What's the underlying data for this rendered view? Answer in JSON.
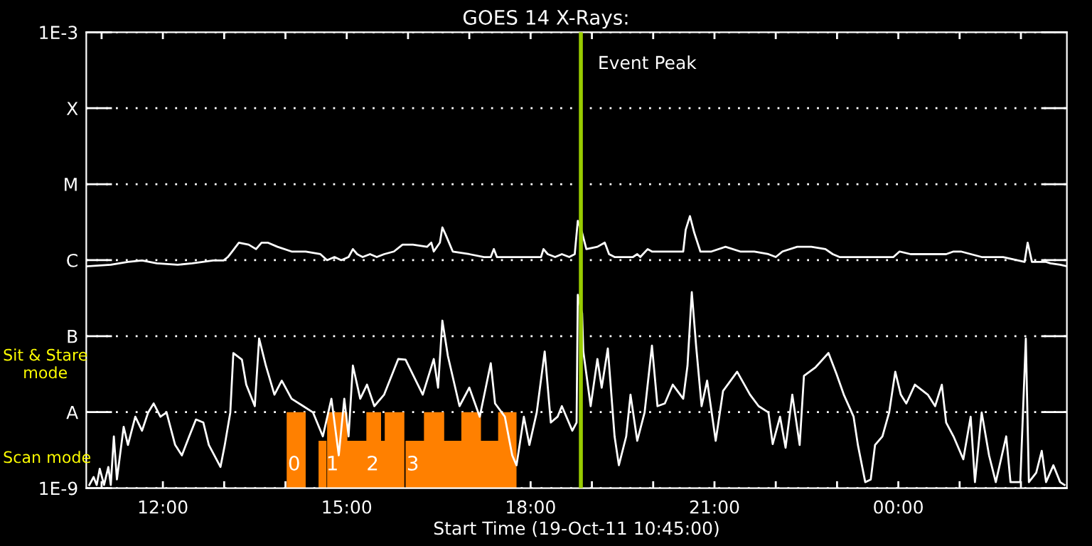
{
  "chart_data": {
    "type": "line",
    "title": "GOES 14 X-Rays:",
    "xlabel": "Start Time (19-Oct-11 10:45:00)",
    "log": "y",
    "grid": "y",
    "line_style": "solid",
    "marker": "none",
    "xlim": [
      10.75,
      26.75
    ],
    "xticks": [
      {
        "value": 11,
        "label": null
      },
      {
        "value": 12,
        "label": "12:00"
      },
      {
        "value": 13,
        "label": null
      },
      {
        "value": 14,
        "label": null
      },
      {
        "value": 15,
        "label": "15:00"
      },
      {
        "value": 16,
        "label": null
      },
      {
        "value": 17,
        "label": null
      },
      {
        "value": 18,
        "label": "18:00"
      },
      {
        "value": 19,
        "label": null
      },
      {
        "value": 20,
        "label": null
      },
      {
        "value": 21,
        "label": "21:00"
      },
      {
        "value": 22,
        "label": null
      },
      {
        "value": 23,
        "label": null
      },
      {
        "value": 24,
        "label": "00:00"
      },
      {
        "value": 25,
        "label": null
      },
      {
        "value": 26,
        "label": null
      }
    ],
    "ylim": [
      1e-09,
      0.001
    ],
    "yticks": [
      {
        "value": 1e-09,
        "label": "1E-9"
      },
      {
        "value": 1e-08,
        "label": "A"
      },
      {
        "value": 1e-07,
        "label": "B"
      },
      {
        "value": 1e-06,
        "label": "C"
      },
      {
        "value": 1e-05,
        "label": "M"
      },
      {
        "value": 0.0001,
        "label": "X"
      },
      {
        "value": 0.001,
        "label": "1E-3"
      }
    ],
    "ref_lines": [
      {
        "axis": "x",
        "value": 18.82,
        "label": "Event Peak",
        "color": "#99cc00",
        "line_style": "solid"
      }
    ],
    "annotations": [
      "Sit & Stare\nmode",
      "Scan mode",
      "0",
      "1",
      "2",
      "3"
    ],
    "series": [
      {
        "type": "area",
        "color": "#ff8000",
        "x": [
          14.02,
          14.33
        ],
        "values": [
          1e-08,
          1e-08
        ]
      },
      {
        "type": "area",
        "color": "#ff8000",
        "x": [
          14.54,
          14.67
        ],
        "values": [
          4.2e-09,
          4.2e-09
        ]
      },
      {
        "type": "area",
        "color": "#ff8000",
        "x": [
          14.68,
          15.01,
          15.01,
          15.32,
          15.32,
          15.56,
          15.56,
          15.62,
          15.62,
          15.94
        ],
        "values": [
          1e-08,
          1e-08,
          4.2e-09,
          4.2e-09,
          1e-08,
          1e-08,
          4.2e-09,
          4.2e-09,
          1e-08,
          1e-08
        ]
      },
      {
        "type": "area",
        "color": "#ff8000",
        "x": [
          15.96,
          16.26,
          16.26,
          16.59,
          16.59,
          16.87,
          16.87,
          17.19,
          17.19,
          17.47,
          17.47,
          17.77
        ],
        "values": [
          4.2e-09,
          4.2e-09,
          1e-08,
          1e-08,
          4.2e-09,
          4.2e-09,
          1e-08,
          1e-08,
          4.2e-09,
          4.2e-09,
          1e-08,
          1e-08
        ]
      },
      {
        "color": "#ffffff",
        "x": [
          10.76,
          11.15,
          11.43,
          11.66,
          11.9,
          12.24,
          12.48,
          12.82,
          12.99,
          13.06,
          13.13,
          13.24,
          13.4,
          13.52,
          13.61,
          13.71,
          13.87,
          14.1,
          14.33,
          14.57,
          14.68,
          14.8,
          14.91,
          15.03,
          15.1,
          15.17,
          15.26,
          15.38,
          15.49,
          15.61,
          15.77,
          15.91,
          16.08,
          16.31,
          16.38,
          16.42,
          16.52,
          16.56,
          16.61,
          16.73,
          17.0,
          17.24,
          17.35,
          17.4,
          17.45,
          17.58,
          17.82,
          17.93,
          18.17,
          18.21,
          18.28,
          18.4,
          18.51,
          18.63,
          18.72,
          18.77,
          18.84,
          18.91,
          19.09,
          19.21,
          19.28,
          19.37,
          19.56,
          19.67,
          19.74,
          19.79,
          19.91,
          19.98,
          20.14,
          20.49,
          20.53,
          20.6,
          20.67,
          20.77,
          20.95,
          21.18,
          21.42,
          21.65,
          21.88,
          22.0,
          22.11,
          22.35,
          22.58,
          22.81,
          22.93,
          23.04,
          23.39,
          23.92,
          24.02,
          24.2,
          24.67,
          24.78,
          24.9,
          25.02,
          25.36,
          25.71,
          26.06,
          26.11,
          26.18,
          26.41,
          26.48,
          26.64,
          26.75
        ],
        "values": [
          8.3e-07,
          8.7e-07,
          9.5e-07,
          9.9e-07,
          9.1e-07,
          8.7e-07,
          9.1e-07,
          9.9e-07,
          9.9e-07,
          1.1e-06,
          1.3e-06,
          1.7e-06,
          1.6e-06,
          1.4e-06,
          1.7e-06,
          1.7e-06,
          1.5e-06,
          1.3e-06,
          1.3e-06,
          1.2e-06,
          1e-06,
          1.1e-06,
          1e-06,
          1.1e-06,
          1.4e-06,
          1.2e-06,
          1.1e-06,
          1.2e-06,
          1.1e-06,
          1.2e-06,
          1.3e-06,
          1.6e-06,
          1.6e-06,
          1.5e-06,
          1.7e-06,
          1.3e-06,
          1.7e-06,
          2.7e-06,
          2.2e-06,
          1.3e-06,
          1.2e-06,
          1.1e-06,
          1.1e-06,
          1.4e-06,
          1.1e-06,
          1.1e-06,
          1.1e-06,
          1.1e-06,
          1.1e-06,
          1.4e-06,
          1.2e-06,
          1.1e-06,
          1.2e-06,
          1.1e-06,
          1.2e-06,
          3.3e-06,
          2.3e-06,
          1.4e-06,
          1.5e-06,
          1.7e-06,
          1.2e-06,
          1.1e-06,
          1.1e-06,
          1.1e-06,
          1.2e-06,
          1.1e-06,
          1.4e-06,
          1.3e-06,
          1.3e-06,
          1.3e-06,
          2.5e-06,
          3.8e-06,
          2.3e-06,
          1.3e-06,
          1.3e-06,
          1.5e-06,
          1.3e-06,
          1.3e-06,
          1.2e-06,
          1.1e-06,
          1.3e-06,
          1.5e-06,
          1.5e-06,
          1.4e-06,
          1.2e-06,
          1.1e-06,
          1.1e-06,
          1.1e-06,
          1.3e-06,
          1.2e-06,
          1.2e-06,
          1.2e-06,
          1.3e-06,
          1.3e-06,
          1.1e-06,
          1.1e-06,
          9.5e-07,
          1.7e-06,
          9.5e-07,
          9.5e-07,
          9.1e-07,
          8.7e-07,
          8.3e-07
        ]
      },
      {
        "color": "#ffffff",
        "x": [
          10.8,
          10.87,
          10.92,
          10.97,
          11.04,
          11.11,
          11.15,
          11.2,
          11.25,
          11.36,
          11.43,
          11.55,
          11.66,
          11.76,
          11.85,
          11.96,
          12.06,
          12.2,
          12.31,
          12.43,
          12.54,
          12.66,
          12.75,
          12.94,
          13.01,
          13.1,
          13.15,
          13.29,
          13.36,
          13.5,
          13.57,
          13.68,
          13.82,
          13.94,
          14.1,
          14.29,
          14.45,
          14.61,
          14.75,
          14.87,
          14.96,
          15.03,
          15.1,
          15.22,
          15.33,
          15.45,
          15.61,
          15.84,
          15.96,
          16.24,
          16.42,
          16.49,
          16.56,
          16.65,
          16.84,
          17.0,
          17.17,
          17.35,
          17.42,
          17.58,
          17.7,
          17.77,
          17.89,
          17.98,
          18.1,
          18.23,
          18.33,
          18.44,
          18.51,
          18.68,
          18.75,
          18.77,
          18.84,
          18.86,
          18.98,
          19.09,
          19.16,
          19.26,
          19.37,
          19.44,
          19.56,
          19.63,
          19.74,
          19.86,
          19.98,
          20.07,
          20.19,
          20.32,
          20.49,
          20.56,
          20.63,
          20.7,
          20.79,
          20.88,
          21.02,
          21.14,
          21.37,
          21.58,
          21.72,
          21.88,
          21.95,
          22.07,
          22.16,
          22.27,
          22.39,
          22.46,
          22.65,
          22.86,
          22.99,
          23.11,
          23.27,
          23.34,
          23.46,
          23.55,
          23.62,
          23.74,
          23.85,
          23.95,
          24.04,
          24.13,
          24.27,
          24.48,
          24.6,
          24.71,
          24.78,
          24.9,
          25.06,
          25.18,
          25.25,
          25.36,
          25.48,
          25.59,
          25.76,
          25.83,
          25.99,
          26.08,
          26.13,
          26.25,
          26.34,
          26.41,
          26.53,
          26.64,
          26.71
        ],
        "values": [
          1.1e-09,
          1.4e-09,
          1.1e-09,
          1.8e-09,
          1.1e-09,
          1.9e-09,
          1.1e-09,
          4.8e-09,
          1.3e-09,
          6.4e-09,
          3.7e-09,
          8.7e-09,
          5.7e-09,
          9.9e-09,
          1.3e-08,
          8.7e-09,
          9.9e-09,
          3.7e-09,
          2.7e-09,
          4.8e-09,
          8e-09,
          7.3e-09,
          3.7e-09,
          1.9e-09,
          3.7e-09,
          9.9e-09,
          6e-08,
          4.9e-08,
          2.3e-08,
          1.2e-08,
          9.3e-08,
          4.1e-08,
          1.7e-08,
          2.6e-08,
          1.5e-08,
          1.2e-08,
          9.9e-09,
          4.8e-09,
          1.5e-08,
          2.7e-09,
          1.5e-08,
          4.8e-09,
          4.1e-08,
          1.5e-08,
          2.3e-08,
          1.2e-08,
          1.7e-08,
          5e-08,
          4.9e-08,
          1.7e-08,
          5e-08,
          2.1e-08,
          1.6e-07,
          5.5e-08,
          1.2e-08,
          2.1e-08,
          8.7e-09,
          4.4e-08,
          1.3e-08,
          8.7e-09,
          2.7e-09,
          2e-09,
          8.7e-09,
          3.7e-09,
          9.9e-09,
          6.3e-08,
          7.3e-09,
          8.7e-09,
          1.2e-08,
          5.7e-09,
          7.3e-09,
          3.5e-07,
          2e-07,
          6.3e-08,
          1.2e-08,
          5e-08,
          2.1e-08,
          6.9e-08,
          4.8e-09,
          2e-09,
          4.8e-09,
          1.7e-08,
          4.2e-09,
          9.9e-09,
          7.5e-08,
          1.2e-08,
          1.3e-08,
          2.3e-08,
          1.5e-08,
          4.1e-08,
          3.8e-07,
          7.5e-08,
          1.2e-08,
          2.6e-08,
          4.2e-09,
          1.9e-08,
          3.4e-08,
          1.7e-08,
          1.2e-08,
          9.9e-09,
          3.8e-09,
          8.7e-09,
          3.4e-09,
          1.7e-08,
          3.7e-09,
          3e-08,
          3.9e-08,
          6e-08,
          3.2e-08,
          1.7e-08,
          8.7e-09,
          3.7e-09,
          1.2e-09,
          1.3e-09,
          3.7e-09,
          4.8e-09,
          9.9e-09,
          3.4e-08,
          1.7e-08,
          1.3e-08,
          2.3e-08,
          1.7e-08,
          1.2e-08,
          2.3e-08,
          7.3e-09,
          4.8e-09,
          2.4e-09,
          8.7e-09,
          1.2e-09,
          9.9e-09,
          2.7e-09,
          1.2e-09,
          4.8e-09,
          1.2e-09,
          1.2e-09,
          9.3e-08,
          1.2e-09,
          1.6e-09,
          3.1e-09,
          1.2e-09,
          2e-09,
          1.2e-09,
          1.1e-09
        ]
      }
    ]
  }
}
